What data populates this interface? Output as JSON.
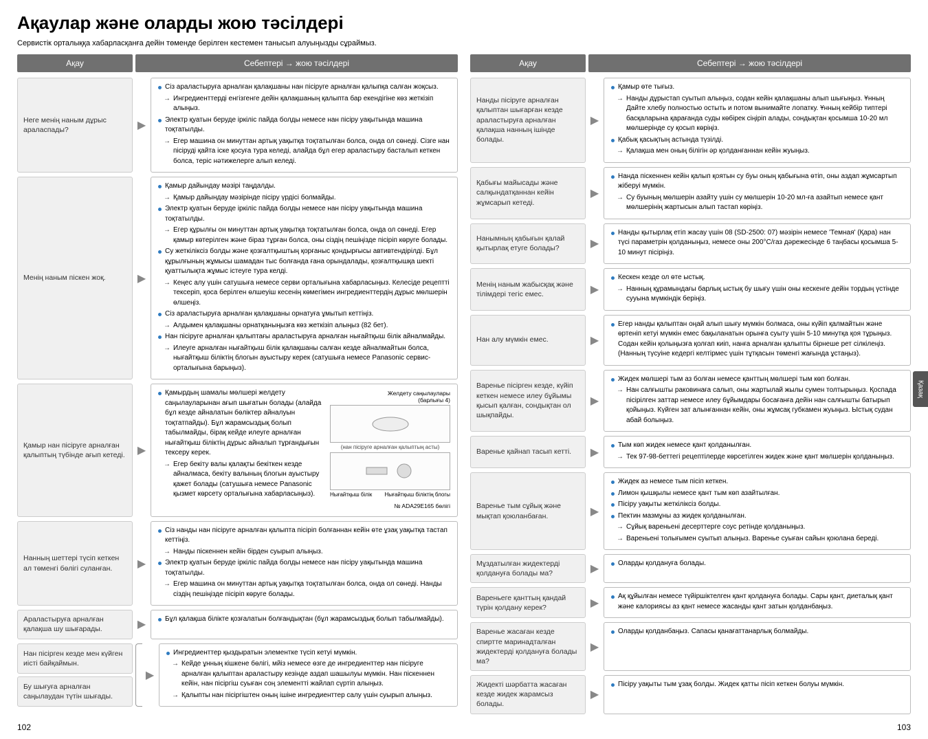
{
  "title": "Ақаулар және оларды жою тәсілдері",
  "intro": "Сервистік орталыққа хабарласқанға дейін төменде берілген кестемен танысып алуыңызды сұраймыз.",
  "hdr_issue": "Ақау",
  "hdr_cause": "Себептері → жою тәсілдері",
  "page_left": "102",
  "page_right": "103",
  "side_tab": "Қазақ",
  "fig": {
    "label_top_right": "Желдету саңылаулары\n(барлығы 4)",
    "caption_mid": "(нан пісіруге арналған қалыптың асты)",
    "label_left": "Нығайтқыш білік",
    "label_right": "Нығайтқыш біліктің блогы",
    "partno": "№ ADA29E165 бөлігі"
  },
  "left": [
    {
      "issue": "Неге менің наным дұрыс араласпады?",
      "lines": [
        {
          "t": "dot",
          "x": "Сіз араластыруға арналған қалақшаны нан пісіруге арналған қалыпқа салған жоқсыз."
        },
        {
          "t": "sub",
          "x": "Ингредиенттерді енгізгенге дейін қалақшаның қалыпта бар екендігіне көз жеткізіп алыңыз."
        },
        {
          "t": "dot",
          "x": "Электр қуатын беруде іркіліс пайда болды немесе нан пісіру уақытында  машина тоқтатылды."
        },
        {
          "t": "sub",
          "x": "Егер машина он минуттан артық уақытқа тоқтатылған болса, онда ол сөнеді. Сізге нан пісіруді қайта іске қосуға тура келеді, алайда бұл егер араластыру басталып кеткен болса, теріс нәтижелерге алып келеді."
        }
      ]
    },
    {
      "issue": "Менің наным піскен жоқ.",
      "lines": [
        {
          "t": "dot",
          "x": "Қамыр дайындау мәзірі таңдалды."
        },
        {
          "t": "sub",
          "x": "Қамыр дайындау мәзірінде пісіру үрдісі болмайды."
        },
        {
          "t": "dot",
          "x": "Электр қуатын беруде іркіліс пайда болды немесе нан пісіру уақытында машина тоқтатылды."
        },
        {
          "t": "sub",
          "x": "Егер құрылғы он минуттан артық уақытқа тоқтатылған болса, онда ол сөнеді. Егер қамыр көтерілген және біраз тұрған болса, оны сіздің пешіңізде пісіріп көруге болады."
        },
        {
          "t": "dot",
          "x": "Су жеткіліксіз болды және қозғалтқыштың қорғаныс қондырғысы автивтендірілді. Бұл құрылғының жұмысы шамадан тыс болғанда ғана орындалады, қозғалтқышқа шекті қуаттылықта жұмыс істеуге тура келді."
        },
        {
          "t": "sub",
          "x": "Кеңес алу үшін сатушыға немесе серви орталығына хабарласыңыз. Келесіде рецептті тексеріп, қоса берілген өлшеуіш кесенің көмегімен ингредиенттердің дұрыс мөлшерін өлшеңіз."
        },
        {
          "t": "dot",
          "x": "Сіз араластыруға арналған қалақшаны орнатуға ұмытып кеттіңіз."
        },
        {
          "t": "sub",
          "x": "Алдымен қалақшаны орнатқаныңызға көз жеткізіп алыңыз (82 бет)."
        },
        {
          "t": "dot",
          "x": "Нан пісіруге арналған қалыптағы араластыруға арналған нығайтқыш білік айналмайды."
        },
        {
          "t": "sub",
          "x": "Илеуге арналған нығайтқыш білік қалақшаны салған кезде айналмайтын болса, нығайтқыш біліктің блогын ауыстыру керек (сатушыға немесе Panasonic сервис-орталығына барыңыз)."
        }
      ]
    },
    {
      "issue": "Қамыр нан пісіруге арналған қалыптың түбінде ағып кетеді.",
      "hasfig": true,
      "lines": [
        {
          "t": "dot",
          "x": "Қамырдың  шамалы мөлшері желдету саңылауларынан ағып шығатын болады (алайда бұл кезде айналатын бөліктер айналуын тоқтатпайды). Бұл жарамсыздық болып табылмайды, бірақ кейде илеуге арналған нығайтқыш біліктің дұрыс айналып тұрғандығын тексеру керек."
        },
        {
          "t": "sub",
          "x": "Егер бекіту валы қалақты бекіткен кезде айналмаса, бекіту валының блогын ауыстыру қажет болады (сатушыға немесе Panasonic қызмет көрсету орталығына хабарласыңыз)."
        }
      ]
    },
    {
      "issue": "Нанның шеттері түсіп кеткен ал төменгі бөлігі суланған.",
      "lines": [
        {
          "t": "dot",
          "x": "Сіз нанды нан пісіруге арналған қалыпта пісіріп болғаннан кейін өте ұзақ уақытқа тастап кеттіңіз."
        },
        {
          "t": "sub",
          "x": "Нанды піскеннен кейін бірден суырып алыңыз."
        },
        {
          "t": "dot",
          "x": "Электр қуатын беруде іркіліс пайда болды немесе нан пісіру уақытында машина тоқтатылды."
        },
        {
          "t": "sub",
          "x": "Егер машина он минуттан артық уақытқа тоқтатылған болса, онда ол сөнеді. Нанды сіздің пешіңізде пісіріп көруге болады."
        }
      ]
    },
    {
      "issue": "Араластыруға арналған қалақша шу шығарады.",
      "lines": [
        {
          "t": "dot",
          "x": "Бұл қалақша білікте  қозғалатын болғандықтан (бұл жарамсыздық болып табылмайды)."
        }
      ]
    }
  ],
  "left_multi": {
    "issues": [
      "Нан пісірген кезде мен күйген иісті байқаймын.",
      "Бу шығуға арналған саңылаудан түтін шығады."
    ],
    "lines": [
      {
        "t": "dot",
        "x": "Ингредиенттер  қыздыратын элементке түсіп кетуі мүмкін."
      },
      {
        "t": "sub",
        "x": "Кейде ұнның кішкене бөлігі, мйіз немесе өзге де ингредиенттер нан пісіруге арналған қалыптан араластыру кезінде аздап шашылуы мүмкін.  Нан піскеннен кейін, нан пісіргіш суыған соң элементті жайлап сүртіп алыңыз."
      },
      {
        "t": "sub",
        "x": "Қалыпты нан пісіргіштен оның ішіне ингредиенттер салу үшін суырып алыңыз."
      }
    ]
  },
  "right": [
    {
      "issue": "Нанды пісіруге арналған қалыптан шығарған кезде араластыруға арналған қалақша нанның ішінде болады.",
      "lines": [
        {
          "t": "dot",
          "x": "Қамыр өте тығыз."
        },
        {
          "t": "sub",
          "x": "Нанды дұрыстап суытып алыңыз, содан кейін қалақшаны алып шығыңыз. Ұнның Дайте хлебу полностью остыть и потом вынимайте лопатку. Ұнның кейбір типтері басқаларына қарағанда суды көбірек сіңіріп алады, сондықтан қосымша 10-20 мл мөлшерінде су қосып көріңіз."
        },
        {
          "t": "dot",
          "x": "Қабық қасықтың астында түзілді."
        },
        {
          "t": "sub",
          "x": "Қалақша мен оның білігін әр қолданғаннан кейін жуыңыз."
        }
      ]
    },
    {
      "issue": "Қабығы майысады және салқындатқаннан кейін жұмсарып кетеді.",
      "lines": [
        {
          "t": "dot",
          "x": "Нанда піскеннен кейін қалып қоятын су буы оның қабығына өтіп, оны аздап жұмсартып жіберуі мүмкін."
        },
        {
          "t": "sub",
          "x": "Су буының мөлшерін азайту үшін су мөлшерін 10-20 мл-ға азайтып немесе қант мөлшерінің жартысын алып тастап көріңіз."
        }
      ]
    },
    {
      "issue": "Нанымның қабығын қалай қытырлақ етуге болады?",
      "lines": [
        {
          "t": "dot",
          "x": "Нанды қытырлақ етіп жасау үшін 08 (SD-2500: 07) мәзірін немесе 'Темная' (Қара) нан түсі параметрін қолданыңыз, немесе оны 200°С/газ дәрежесінде 6 таңбасы қосымша 5-10 минут пісіріңіз."
        }
      ]
    },
    {
      "issue": "Менің наным жабысқақ және тілімдері тегіс емес.",
      "lines": [
        {
          "t": "dot",
          "x": "Кескен кезде ол өте ыстық."
        },
        {
          "t": "sub",
          "x": "Нанның құрамындағы барлық ыстық бу  шығу үшін оны кескенге дейін тордың үстінде сууына мүмкіндік беріңіз."
        }
      ]
    },
    {
      "issue": "Нан алу мүмкін емес.",
      "lines": [
        {
          "t": "dot",
          "x": "Егер нанды қалыптан оңай алып шығу мүмкін болмаса, оны күйіп қалмайтын және өртеніп кетуі мүмкін емес бақыланатын орынға суыту үшін 5-10 минутқа қоя тұрыңыз. Содан кейін қолыңызға қолғап киіп, нанға арналған қалыпты бірнеше рет сілкілеңіз. (Нанның түсуіне кедергі келтірмес үшін тұтқасын төменгі жағында ұстаңыз)."
        }
      ]
    },
    {
      "issue": "Варенье пісірген кезде, күйіп кеткен немесе илеу бұйымы қысып қалған, сондықтан ол шықпайды.",
      "lines": [
        {
          "t": "dot",
          "x": "Жидек мөлшері тым аз болған немесе қанттың мөлшері тым көп болған."
        },
        {
          "t": "sub",
          "x": "Нан салғышты раковинаға салып, оны жартылай жылы сумен толтырыңыз. Қоспада пісірілген заттар немесе илеу бұйымдары босағанға дейін нан салғышты батырып қойыңыз. Күйген зат алынғаннан кейін, оны жұмсақ губкамен жуыңыз. Ыстық судан абай болыңыз."
        }
      ]
    },
    {
      "issue": "Варенье қайнап тасып кетті.",
      "lines": [
        {
          "t": "dot",
          "x": "Тым көп жидек немесе қант қолданылған."
        },
        {
          "t": "sub",
          "x": "Тек 97-98-беттегі рецептілерде көрсетілген жидек және қант мөлшерін қолданыңыз."
        }
      ]
    },
    {
      "issue": "Варенье тым сұйық және мықтап қоюланбаған.",
      "lines": [
        {
          "t": "dot",
          "x": "Жидек аз немесе тым пісіп кеткен."
        },
        {
          "t": "dot",
          "x": "Лимон қышқылы немесе қант тым көп азайтылған."
        },
        {
          "t": "dot",
          "x": "Пісіру уақыты жеткіліксіз болды."
        },
        {
          "t": "dot",
          "x": "Пектин мазмұны аз жидек қолданылған."
        },
        {
          "t": "sub",
          "x": "Сұйық вареньені десерттерге соус ретінде қолданыңыз."
        },
        {
          "t": "sub",
          "x": "Вареньені толығымен суытып алыңыз. Варенье суыған сайын қоюлана береді."
        }
      ]
    },
    {
      "issue": "Мұздатылған жидектерді қолдануға болады ма?",
      "lines": [
        {
          "t": "dot",
          "x": "Оларды қолдануға болады."
        }
      ]
    },
    {
      "issue": "Вареньеге қанттың қандай түрін қолдану керек?",
      "lines": [
        {
          "t": "dot",
          "x": "Ақ құйылған немесе түйіршіктелген қант қолдануға болады. Сары қант, диеталық қант және калориясы аз қант немесе жасанды қант затын қолданбаңыз."
        }
      ]
    },
    {
      "issue": "Варенье жасаған кезде спиртте маринадталған жидектерді қолдануға болады ма?",
      "lines": [
        {
          "t": "dot",
          "x": "Оларды қолданбаңыз. Сапасы қанағаттанарлық болмайды."
        }
      ]
    },
    {
      "issue": "Жидекті шәрбатта жасаған кезде жидек жарамсыз болады.",
      "lines": [
        {
          "t": "dot",
          "x": "Пісіру уақыты тым ұзақ болды. Жидек қатты пісіп кеткен болуы мүмкін."
        }
      ]
    }
  ]
}
